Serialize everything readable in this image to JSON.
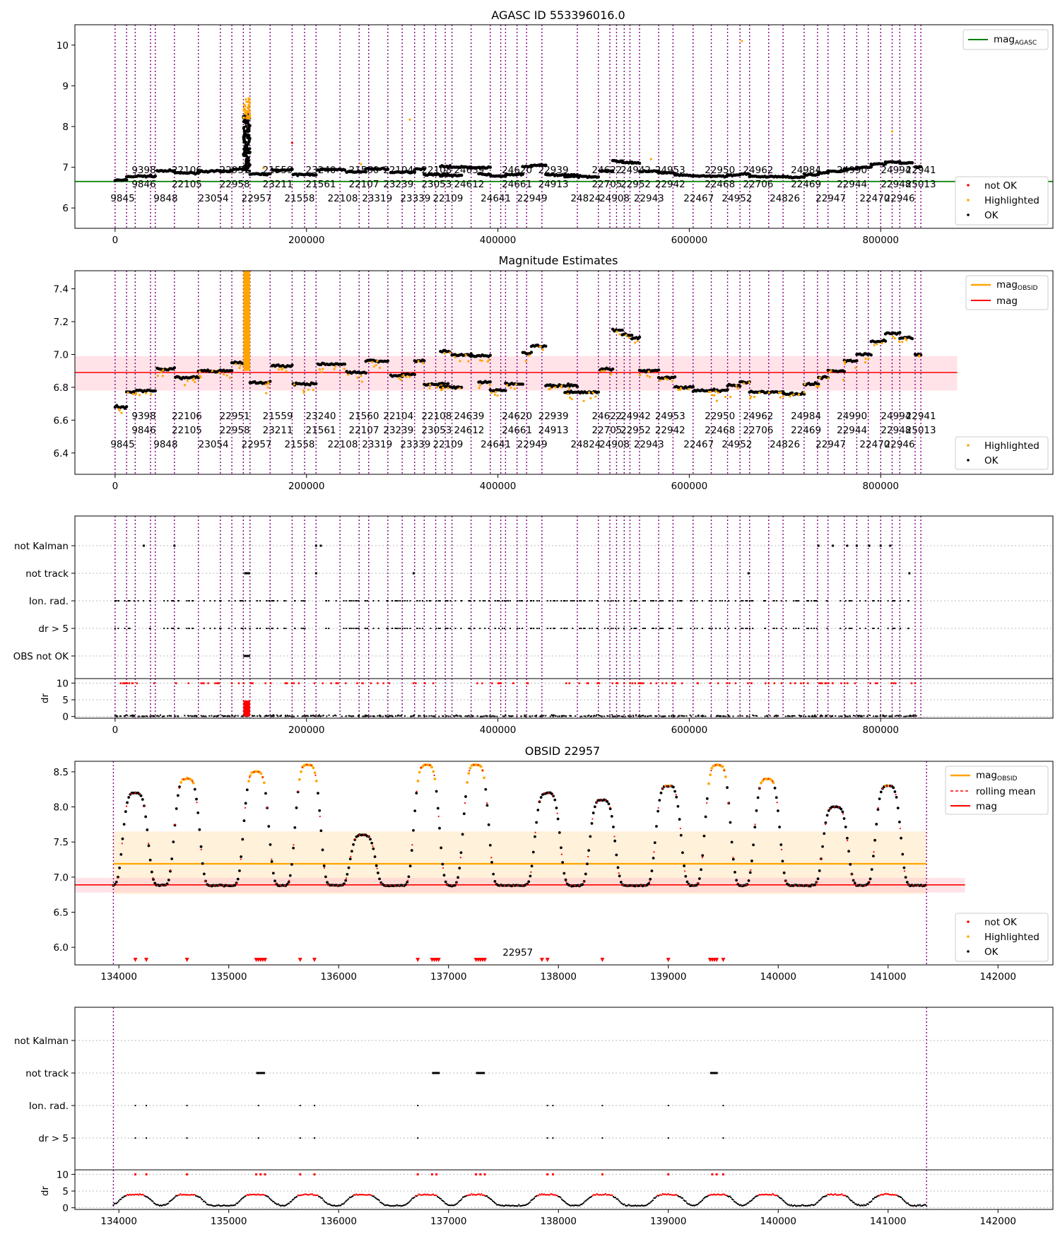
{
  "chart_data": [
    {
      "type": "scatter",
      "title": "AGASC ID 553396016.0",
      "xlim": [
        -42000,
        980000
      ],
      "ylim": [
        5.5,
        10.5
      ],
      "xticks": [
        "0",
        "200000",
        "400000",
        "600000",
        "800000"
      ],
      "yticks": [
        "6",
        "7",
        "8",
        "9",
        "10"
      ],
      "legend_top": [
        {
          "name": "mag_AGASC",
          "color": "#008000",
          "kind": "line"
        }
      ],
      "legend_bottom": [
        {
          "name": "not OK",
          "color": "#ff0000"
        },
        {
          "name": "Highlighted",
          "color": "#ffa500"
        },
        {
          "name": "OK",
          "color": "#000000"
        }
      ],
      "mag_agasc": 6.65,
      "legend_placement": "top-right / bottom-right",
      "obsid_lines": "dotted purple vertical at each observation start",
      "obsid_labels": [
        [
          "9398",
          "9846",
          "9845"
        ],
        [
          "22106",
          "22105",
          "9848"
        ],
        [
          "22951",
          "22958",
          "23054"
        ],
        [
          "21559",
          "23211",
          "22957"
        ],
        [
          "23240",
          "21561",
          "21558"
        ],
        [
          "21560",
          "22107",
          "22108"
        ],
        [
          "22104",
          "23239",
          "23319"
        ],
        [
          "22108",
          "23053",
          "23339"
        ],
        [
          "24639",
          "24612",
          "22109"
        ],
        [
          "24620",
          "24661",
          "24641"
        ],
        [
          "22939",
          "24913",
          "22949"
        ],
        [
          "24622",
          "22705",
          "24824"
        ],
        [
          "24942",
          "22952",
          "24908"
        ],
        [
          "24953",
          "22942",
          "22943"
        ],
        [
          "22950",
          "22468",
          "22467"
        ],
        [
          "24962",
          "22706",
          "24952"
        ],
        [
          "24984",
          "22469",
          "24826"
        ],
        [
          "24990",
          "22944",
          "22947"
        ],
        [
          "24994",
          "22948",
          "22470"
        ],
        [
          "22941",
          "25013",
          "22946"
        ]
      ]
    },
    {
      "type": "scatter",
      "title": "Magnitude Estimates",
      "xlim": [
        -42000,
        980000
      ],
      "ylim": [
        6.27,
        7.51
      ],
      "xticks": [
        "0",
        "200000",
        "400000",
        "600000",
        "800000"
      ],
      "yticks": [
        "6.4",
        "6.6",
        "6.8",
        "7.0",
        "7.2",
        "7.4"
      ],
      "mag": 6.89,
      "mag_band": [
        6.78,
        6.99
      ],
      "legend_top": [
        {
          "name": "mag_OBSID",
          "color": "#ffa500",
          "kind": "line"
        },
        {
          "name": "mag",
          "color": "#ff0000",
          "kind": "line"
        }
      ],
      "legend_bottom": [
        {
          "name": "Highlighted",
          "color": "#ffa500"
        },
        {
          "name": "OK",
          "color": "#000000"
        }
      ]
    },
    {
      "type": "scatter",
      "title": "",
      "flag_rows": [
        "not Kalman",
        "not track",
        "Ion. rad.",
        "dr > 5",
        "OBS not OK"
      ],
      "dr_label": "dr",
      "dr_ticks": [
        "0",
        "5",
        "10"
      ],
      "xticks": [
        "0",
        "200000",
        "400000",
        "600000",
        "800000"
      ]
    },
    {
      "type": "scatter",
      "title": "OBSID 22957",
      "xlim": [
        133600,
        142500
      ],
      "ylim": [
        5.75,
        8.65
      ],
      "xticks": [
        "134000",
        "135000",
        "136000",
        "137000",
        "138000",
        "139000",
        "140000",
        "141000",
        "142000"
      ],
      "yticks": [
        "6.0",
        "6.5",
        "7.0",
        "7.5",
        "8.0",
        "8.5"
      ],
      "obsid_label": "22957",
      "mag_obsid": 7.19,
      "mag_obsid_band": [
        6.76,
        7.65
      ],
      "mag": 6.89,
      "legend_top": [
        {
          "name": "mag_OBSID",
          "color": "#ffa500",
          "kind": "line"
        },
        {
          "name": "rolling mean",
          "color": "#ff0000",
          "kind": "dash"
        },
        {
          "name": "mag",
          "color": "#ff0000",
          "kind": "line"
        }
      ],
      "legend_bottom": [
        {
          "name": "not OK",
          "color": "#ff0000"
        },
        {
          "name": "Highlighted",
          "color": "#ffa500"
        },
        {
          "name": "OK",
          "color": "#000000"
        }
      ],
      "peaks": [
        [
          134150,
          8.2
        ],
        [
          134620,
          8.4
        ],
        [
          135250,
          8.5
        ],
        [
          135720,
          8.6
        ],
        [
          136220,
          7.6
        ],
        [
          136800,
          8.6
        ],
        [
          137250,
          8.6
        ],
        [
          137900,
          8.2
        ],
        [
          138400,
          8.1
        ],
        [
          139000,
          8.3
        ],
        [
          139450,
          8.6
        ],
        [
          139900,
          8.4
        ],
        [
          140520,
          8.0
        ],
        [
          141000,
          8.3
        ]
      ]
    },
    {
      "type": "scatter",
      "title": "",
      "flag_rows": [
        "not Kalman",
        "not track",
        "Ion. rad.",
        "dr > 5"
      ],
      "dr_label": "dr",
      "dr_ticks": [
        "0",
        "5",
        "10"
      ],
      "xticks": [
        "134000",
        "135000",
        "136000",
        "137000",
        "138000",
        "139000",
        "140000",
        "141000",
        "142000"
      ]
    }
  ]
}
